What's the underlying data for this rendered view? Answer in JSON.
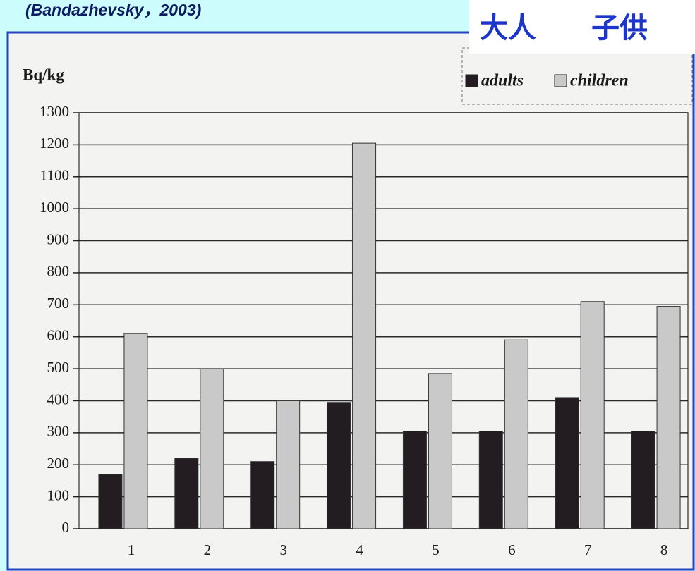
{
  "chart_data": {
    "type": "bar",
    "title": "(Bandazhevsky，2003)",
    "overlay_labels": [
      "大人",
      "子供"
    ],
    "y_label": "Bq/kg",
    "categories": [
      "1",
      "2",
      "3",
      "4",
      "5",
      "6",
      "7",
      "8"
    ],
    "series": [
      {
        "name": "adults",
        "color": "#231c20",
        "values": [
          170,
          220,
          210,
          395,
          305,
          305,
          410,
          305
        ]
      },
      {
        "name": "children",
        "color": "#c9c9c9",
        "values": [
          610,
          500,
          400,
          1205,
          485,
          590,
          710,
          695
        ]
      }
    ],
    "ylim": [
      0,
      1300
    ],
    "yticks": [
      0,
      100,
      200,
      300,
      400,
      500,
      600,
      700,
      800,
      900,
      1000,
      1100,
      1200,
      1300
    ],
    "grid": true,
    "legend": "top-right"
  }
}
